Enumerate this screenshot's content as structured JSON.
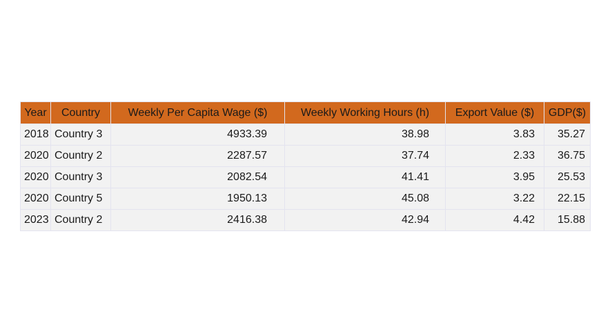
{
  "chart_data": {
    "type": "table",
    "columns": [
      "Year",
      "Country",
      "Weekly Per Capita Wage ($)",
      "Weekly Working Hours (h)",
      "Export Value ($)",
      "GDP($)"
    ],
    "rows": [
      [
        "2018",
        "Country 3",
        "4933.39",
        "38.98",
        "3.83",
        "35.27"
      ],
      [
        "2020",
        "Country 2",
        "2287.57",
        "37.74",
        "2.33",
        "36.75"
      ],
      [
        "2020",
        "Country 3",
        "2082.54",
        "41.41",
        "3.95",
        "25.53"
      ],
      [
        "2020",
        "Country 5",
        "1950.13",
        "45.08",
        "3.22",
        "22.15"
      ],
      [
        "2023",
        "Country 2",
        "2416.38",
        "42.94",
        "4.42",
        "15.88"
      ]
    ],
    "colors": {
      "header_bg": "#d2691e",
      "cell_bg": "#f2f2f2",
      "border": "#e3e3ef"
    }
  }
}
